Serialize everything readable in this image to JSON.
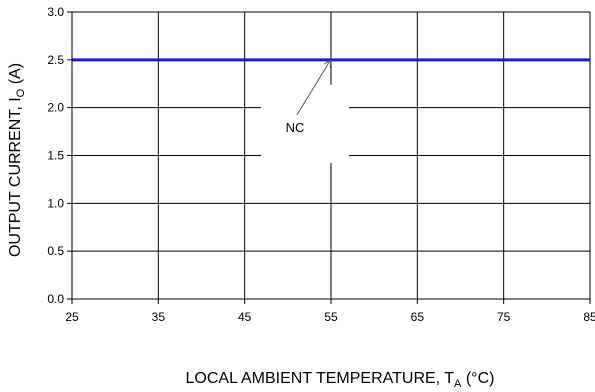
{
  "chart_data": {
    "type": "line",
    "title": "",
    "xlabel": {
      "main": "LOCAL AMBIENT TEMPERATURE, T",
      "sub": "A",
      "unit": " (°C)"
    },
    "ylabel": {
      "main": "OUTPUT CURRENT, I",
      "sub": "O",
      "unit": " (A)"
    },
    "xlim": [
      25,
      85
    ],
    "ylim": [
      0,
      3.0
    ],
    "x_ticks": [
      "25",
      "35",
      "45",
      "55",
      "65",
      "75",
      "85"
    ],
    "y_ticks": [
      "0.0",
      "0.5",
      "1.0",
      "1.5",
      "2.0",
      "2.5",
      "3.0"
    ],
    "grid": true,
    "legend": "none",
    "series": [
      {
        "color": "#1a1adb",
        "x": [
          25,
          85
        ],
        "y": [
          2.5,
          2.5
        ]
      }
    ],
    "annotations": [
      {
        "text": "NC",
        "points_to": {
          "x": 55,
          "y": 2.5
        }
      }
    ]
  }
}
